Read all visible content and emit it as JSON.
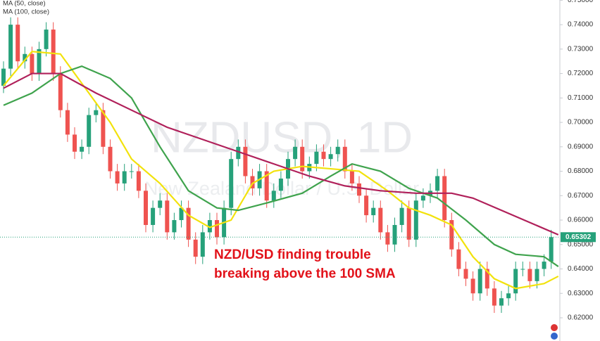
{
  "chart_data": {
    "type": "candlestick",
    "watermark": "NZDUSD, 1D",
    "watermark_subtitle": "New Zealand Dollar / U.S. Dollar",
    "annotation": [
      "NZD/USD finding trouble",
      "breaking above the 100 SMA"
    ],
    "legend": [
      "MA (50, close)",
      "MA (100, close)"
    ],
    "ylim": [
      0.6105,
      0.7501
    ],
    "yticks": [
      {
        "value": 0.62,
        "label": "0.62000"
      },
      {
        "value": 0.63,
        "label": "0.63000"
      },
      {
        "value": 0.64,
        "label": "0.64000"
      },
      {
        "value": 0.65,
        "label": "0.65000"
      },
      {
        "value": 0.66,
        "label": "0.66000"
      },
      {
        "value": 0.67,
        "label": "0.67000"
      },
      {
        "value": 0.68,
        "label": "0.68000"
      },
      {
        "value": 0.69,
        "label": "0.69000"
      },
      {
        "value": 0.7,
        "label": "0.70000"
      },
      {
        "value": 0.71,
        "label": "0.71000"
      },
      {
        "value": 0.72,
        "label": "0.72000"
      },
      {
        "value": 0.73,
        "label": "0.73000"
      },
      {
        "value": 0.74,
        "label": "0.74000"
      },
      {
        "value": 0.75,
        "label": "0.75000"
      }
    ],
    "last_price": 0.65302,
    "up_color": "#26a17a",
    "down_color": "#ef5350",
    "open": [
      0.715,
      0.722,
      0.74,
      0.725,
      0.728,
      0.72,
      0.73,
      0.738,
      0.72,
      0.705,
      0.695,
      0.688,
      0.69,
      0.703,
      0.705,
      0.69,
      0.68,
      0.675,
      0.68,
      0.68,
      0.672,
      0.658,
      0.665,
      0.668,
      0.655,
      0.66,
      0.665,
      0.652,
      0.645,
      0.655,
      0.66,
      0.653,
      0.665,
      0.685,
      0.69,
      0.678,
      0.673,
      0.68,
      0.668,
      0.672,
      0.677,
      0.685,
      0.69,
      0.68,
      0.683,
      0.688,
      0.685,
      0.687,
      0.69,
      0.68,
      0.675,
      0.67,
      0.662,
      0.665,
      0.655,
      0.65,
      0.658,
      0.665,
      0.652,
      0.668,
      0.67,
      0.672,
      0.678,
      0.66,
      0.648,
      0.64,
      0.636,
      0.63,
      0.64,
      0.632,
      0.625,
      0.628,
      0.63,
      0.64,
      0.64,
      0.635,
      0.64,
      0.643
    ],
    "high": [
      0.725,
      0.743,
      0.743,
      0.731,
      0.731,
      0.733,
      0.741,
      0.741,
      0.723,
      0.708,
      0.698,
      0.693,
      0.706,
      0.708,
      0.708,
      0.693,
      0.683,
      0.683,
      0.683,
      0.683,
      0.675,
      0.668,
      0.671,
      0.671,
      0.663,
      0.668,
      0.668,
      0.655,
      0.658,
      0.663,
      0.663,
      0.668,
      0.688,
      0.693,
      0.693,
      0.681,
      0.683,
      0.683,
      0.675,
      0.68,
      0.688,
      0.693,
      0.693,
      0.686,
      0.691,
      0.691,
      0.69,
      0.693,
      0.693,
      0.683,
      0.678,
      0.673,
      0.668,
      0.668,
      0.658,
      0.661,
      0.668,
      0.668,
      0.671,
      0.673,
      0.675,
      0.681,
      0.681,
      0.663,
      0.651,
      0.643,
      0.639,
      0.643,
      0.643,
      0.635,
      0.631,
      0.633,
      0.643,
      0.643,
      0.643,
      0.643,
      0.646,
      0.656
    ],
    "low": [
      0.712,
      0.719,
      0.722,
      0.722,
      0.717,
      0.717,
      0.727,
      0.717,
      0.702,
      0.692,
      0.685,
      0.685,
      0.687,
      0.7,
      0.687,
      0.677,
      0.672,
      0.672,
      0.677,
      0.669,
      0.655,
      0.655,
      0.662,
      0.652,
      0.652,
      0.657,
      0.649,
      0.642,
      0.642,
      0.652,
      0.65,
      0.65,
      0.662,
      0.682,
      0.675,
      0.67,
      0.67,
      0.665,
      0.665,
      0.669,
      0.674,
      0.682,
      0.677,
      0.677,
      0.68,
      0.682,
      0.682,
      0.684,
      0.677,
      0.672,
      0.667,
      0.659,
      0.659,
      0.652,
      0.647,
      0.647,
      0.655,
      0.649,
      0.649,
      0.665,
      0.667,
      0.669,
      0.657,
      0.645,
      0.637,
      0.633,
      0.627,
      0.627,
      0.629,
      0.622,
      0.622,
      0.625,
      0.627,
      0.637,
      0.632,
      0.632,
      0.637,
      0.64
    ],
    "close": [
      0.722,
      0.74,
      0.725,
      0.728,
      0.72,
      0.73,
      0.738,
      0.72,
      0.705,
      0.695,
      0.688,
      0.69,
      0.703,
      0.705,
      0.69,
      0.68,
      0.675,
      0.68,
      0.68,
      0.672,
      0.658,
      0.665,
      0.668,
      0.655,
      0.66,
      0.665,
      0.652,
      0.645,
      0.655,
      0.66,
      0.653,
      0.665,
      0.685,
      0.69,
      0.678,
      0.673,
      0.68,
      0.668,
      0.672,
      0.677,
      0.685,
      0.69,
      0.68,
      0.683,
      0.688,
      0.685,
      0.687,
      0.69,
      0.68,
      0.675,
      0.67,
      0.662,
      0.665,
      0.655,
      0.65,
      0.658,
      0.665,
      0.652,
      0.668,
      0.67,
      0.672,
      0.678,
      0.66,
      0.648,
      0.64,
      0.636,
      0.63,
      0.64,
      0.632,
      0.625,
      0.628,
      0.63,
      0.64,
      0.64,
      0.635,
      0.64,
      0.643,
      0.65302
    ],
    "series": [
      {
        "color": "#f2e20c",
        "x": [
          0,
          4,
          8,
          12,
          15,
          18,
          22,
          26,
          29,
          32,
          35,
          38,
          42,
          46,
          50,
          54,
          57,
          60,
          63,
          66,
          69,
          72,
          76,
          78
        ],
        "values": [
          0.715,
          0.729,
          0.728,
          0.712,
          0.7,
          0.685,
          0.675,
          0.662,
          0.657,
          0.66,
          0.675,
          0.68,
          0.682,
          0.681,
          0.68,
          0.672,
          0.665,
          0.662,
          0.658,
          0.645,
          0.636,
          0.632,
          0.634,
          0.637
        ]
      },
      {
        "name": "MA (50, close)",
        "color": "#3fa34d",
        "x": [
          0,
          4,
          8,
          11,
          15,
          18,
          22,
          26,
          30,
          33,
          37,
          42,
          46,
          49,
          53,
          57,
          61,
          65,
          69,
          72,
          76,
          78
        ],
        "values": [
          0.707,
          0.712,
          0.72,
          0.723,
          0.718,
          0.71,
          0.69,
          0.672,
          0.665,
          0.664,
          0.667,
          0.671,
          0.678,
          0.683,
          0.68,
          0.673,
          0.669,
          0.66,
          0.65,
          0.646,
          0.645,
          0.641
        ]
      },
      {
        "name": "MA (100, close)",
        "color": "#b0205a",
        "x": [
          0,
          4,
          8,
          13,
          18,
          23,
          28,
          33,
          38,
          43,
          48,
          53,
          58,
          63,
          66,
          70,
          74,
          78
        ],
        "values": [
          0.714,
          0.72,
          0.72,
          0.712,
          0.705,
          0.698,
          0.693,
          0.688,
          0.683,
          0.678,
          0.674,
          0.672,
          0.671,
          0.671,
          0.669,
          0.664,
          0.659,
          0.654
        ]
      }
    ]
  }
}
